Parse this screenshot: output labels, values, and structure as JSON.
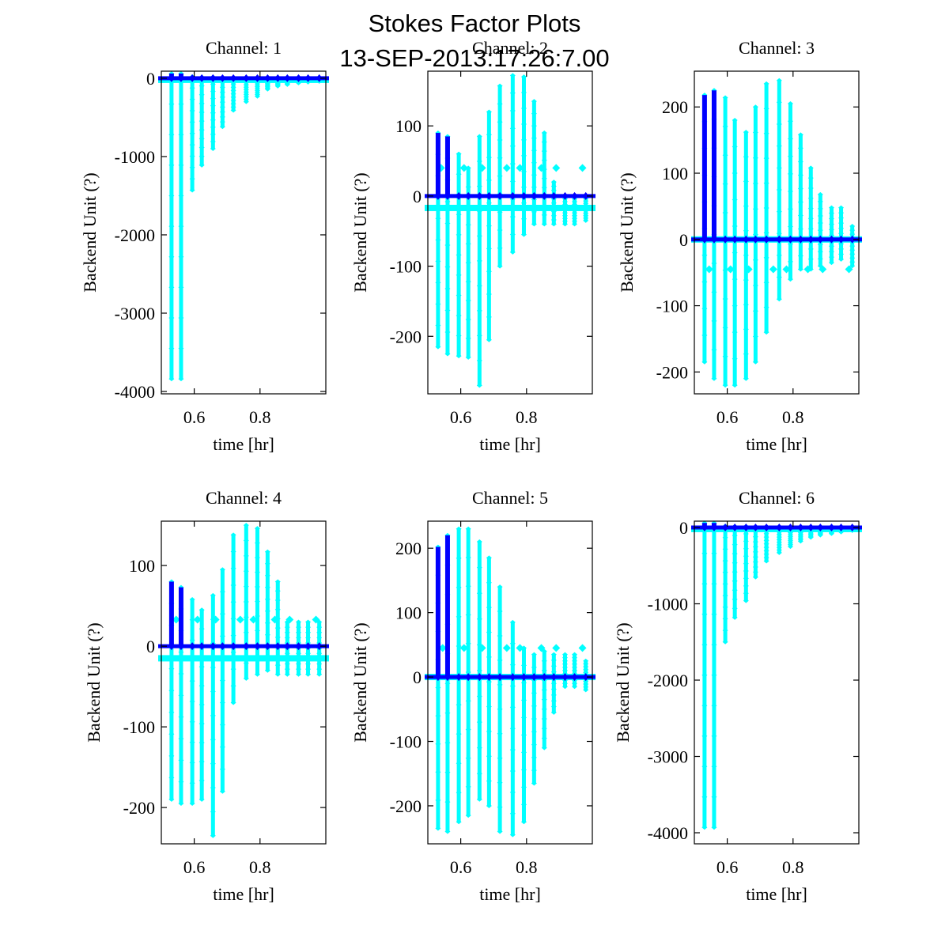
{
  "figure": {
    "title_line1": "Stokes Factor Plots",
    "title_line2": "13-SEP-2013:17:26:7.00"
  },
  "colors": {
    "scatter_primary": "#00FFFF",
    "scatter_mean": "#0000FF",
    "axes": "#000000"
  },
  "chart_data": [
    {
      "type": "scatter",
      "title": "Channel: 1",
      "xlabel": "time [hr]",
      "ylabel": "Backend Unit (?)",
      "xlim": [
        0.5,
        1.0
      ],
      "ylim": [
        -4030,
        90
      ],
      "xticks": [
        0.6,
        0.8
      ],
      "xtick_labels": [
        "0.6",
        "0.8"
      ],
      "yticks": [
        0,
        -1000,
        -2000,
        -3000,
        -4000
      ],
      "ytick_labels": [
        "0",
        "-1000",
        "-2000",
        "-3000",
        "-4000"
      ],
      "grid": false,
      "series": [
        {
          "name": "samples",
          "color": "#00FFFF",
          "stripes_t": [
            0.531,
            0.56,
            0.594,
            0.623,
            0.657,
            0.686,
            0.719,
            0.758,
            0.792,
            0.823,
            0.854,
            0.883,
            0.917,
            0.946,
            0.98
          ],
          "stripes_max": [
            60,
            60,
            20,
            15,
            15,
            10,
            10,
            10,
            10,
            10,
            10,
            10,
            10,
            10,
            10
          ],
          "stripes_min": [
            -3840,
            -3840,
            -1430,
            -1110,
            -900,
            -620,
            -410,
            -300,
            -230,
            -140,
            -100,
            -80,
            -60,
            -50,
            -40
          ],
          "band_level": -20
        },
        {
          "name": "mean",
          "color": "#0000FF",
          "level": 0
        }
      ]
    },
    {
      "type": "scatter",
      "title": "Channel: 2",
      "xlabel": "time [hr]",
      "ylabel": "Backend Unit (?)",
      "xlim": [
        0.5,
        1.0
      ],
      "ylim": [
        -282,
        178
      ],
      "xticks": [
        0.6,
        0.8
      ],
      "xtick_labels": [
        "0.6",
        "0.8"
      ],
      "yticks": [
        100,
        0,
        -100,
        -200
      ],
      "ytick_labels": [
        "100",
        "0",
        "-100",
        "-200"
      ],
      "grid": false,
      "series": [
        {
          "name": "samples",
          "color": "#00FFFF",
          "stripes_t": [
            0.531,
            0.56,
            0.594,
            0.623,
            0.657,
            0.686,
            0.719,
            0.758,
            0.792,
            0.823,
            0.854,
            0.883,
            0.917,
            0.946,
            0.98
          ],
          "stripes_max": [
            90,
            85,
            60,
            40,
            85,
            120,
            157,
            172,
            170,
            135,
            90,
            20,
            0,
            0,
            0
          ],
          "stripes_min": [
            -215,
            -225,
            -228,
            -230,
            -270,
            -205,
            -100,
            -80,
            -55,
            -40,
            -40,
            -40,
            -40,
            -40,
            -35
          ],
          "band_level": -17,
          "outliers": [
            [
              0.54,
              40
            ],
            [
              0.61,
              40
            ],
            [
              0.665,
              40
            ],
            [
              0.74,
              40
            ],
            [
              0.78,
              40
            ],
            [
              0.845,
              40
            ],
            [
              0.89,
              40
            ],
            [
              0.97,
              40
            ]
          ]
        },
        {
          "name": "mean",
          "color": "#0000FF",
          "level": 0
        }
      ]
    },
    {
      "type": "scatter",
      "title": "Channel: 3",
      "xlabel": "time [hr]",
      "ylabel": "Backend Unit (?)",
      "xlim": [
        0.5,
        1.0
      ],
      "ylim": [
        -233,
        254
      ],
      "xticks": [
        0.6,
        0.8
      ],
      "xtick_labels": [
        "0.6",
        "0.8"
      ],
      "yticks": [
        200,
        100,
        0,
        -100,
        -200
      ],
      "ytick_labels": [
        "200",
        "100",
        "0",
        "-100",
        "-200"
      ],
      "grid": false,
      "series": [
        {
          "name": "samples",
          "color": "#00FFFF",
          "stripes_t": [
            0.531,
            0.56,
            0.594,
            0.623,
            0.657,
            0.686,
            0.719,
            0.758,
            0.792,
            0.823,
            0.854,
            0.883,
            0.917,
            0.946,
            0.98
          ],
          "stripes_max": [
            218,
            225,
            214,
            180,
            162,
            200,
            235,
            240,
            205,
            158,
            108,
            68,
            48,
            48,
            20
          ],
          "stripes_min": [
            -185,
            -210,
            -220,
            -220,
            -210,
            -185,
            -140,
            -90,
            -60,
            -45,
            -45,
            -40,
            -35,
            -30,
            -40
          ],
          "band_level": 0,
          "outliers": [
            [
              0.545,
              -45
            ],
            [
              0.61,
              -45
            ],
            [
              0.665,
              -45
            ],
            [
              0.74,
              -45
            ],
            [
              0.78,
              -45
            ],
            [
              0.845,
              -45
            ],
            [
              0.89,
              -45
            ],
            [
              0.97,
              -45
            ]
          ]
        },
        {
          "name": "mean",
          "color": "#0000FF",
          "level": 0
        }
      ]
    },
    {
      "type": "scatter",
      "title": "Channel: 4",
      "xlabel": "time [hr]",
      "ylabel": "Backend Unit (?)",
      "xlim": [
        0.5,
        1.0
      ],
      "ylim": [
        -245,
        155
      ],
      "xticks": [
        0.6,
        0.8
      ],
      "xtick_labels": [
        "0.6",
        "0.8"
      ],
      "yticks": [
        100,
        0,
        -100,
        -200
      ],
      "ytick_labels": [
        "100",
        "0",
        "-100",
        "-200"
      ],
      "grid": false,
      "series": [
        {
          "name": "samples",
          "color": "#00FFFF",
          "stripes_t": [
            0.531,
            0.56,
            0.594,
            0.623,
            0.657,
            0.686,
            0.719,
            0.758,
            0.792,
            0.823,
            0.854,
            0.883,
            0.917,
            0.946,
            0.98
          ],
          "stripes_max": [
            80,
            73,
            58,
            45,
            63,
            95,
            138,
            150,
            146,
            117,
            80,
            30,
            30,
            30,
            30
          ],
          "stripes_min": [
            -190,
            -195,
            -195,
            -190,
            -235,
            -180,
            -70,
            -40,
            -35,
            -30,
            -35,
            -35,
            -35,
            -35,
            -35
          ],
          "band_level": -15,
          "outliers": [
            [
              0.545,
              33
            ],
            [
              0.61,
              33
            ],
            [
              0.665,
              33
            ],
            [
              0.74,
              33
            ],
            [
              0.78,
              33
            ],
            [
              0.845,
              33
            ],
            [
              0.89,
              33
            ],
            [
              0.97,
              33
            ]
          ]
        },
        {
          "name": "mean",
          "color": "#0000FF",
          "level": 0
        }
      ]
    },
    {
      "type": "scatter",
      "title": "Channel: 5",
      "xlabel": "time [hr]",
      "ylabel": "Backend Unit (?)",
      "xlim": [
        0.5,
        1.0
      ],
      "ylim": [
        -259,
        242
      ],
      "xticks": [
        0.6,
        0.8
      ],
      "xtick_labels": [
        "0.6",
        "0.8"
      ],
      "yticks": [
        200,
        100,
        0,
        -100,
        -200
      ],
      "ytick_labels": [
        "200",
        "100",
        "0",
        "-100",
        "-200"
      ],
      "grid": false,
      "series": [
        {
          "name": "samples",
          "color": "#00FFFF",
          "stripes_t": [
            0.531,
            0.56,
            0.594,
            0.623,
            0.657,
            0.686,
            0.719,
            0.758,
            0.792,
            0.823,
            0.854,
            0.883,
            0.917,
            0.946,
            0.98
          ],
          "stripes_max": [
            202,
            220,
            230,
            230,
            210,
            185,
            140,
            85,
            45,
            35,
            40,
            35,
            35,
            35,
            25
          ],
          "stripes_min": [
            -235,
            -240,
            -225,
            -215,
            -190,
            -200,
            -240,
            -245,
            -225,
            -165,
            -110,
            -55,
            -15,
            -15,
            -20
          ],
          "band_level": 0,
          "outliers": [
            [
              0.545,
              45
            ],
            [
              0.61,
              45
            ],
            [
              0.665,
              45
            ],
            [
              0.74,
              45
            ],
            [
              0.78,
              45
            ],
            [
              0.845,
              45
            ],
            [
              0.89,
              45
            ],
            [
              0.97,
              45
            ]
          ]
        },
        {
          "name": "mean",
          "color": "#0000FF",
          "level": 0
        }
      ]
    },
    {
      "type": "scatter",
      "title": "Channel: 6",
      "xlabel": "time [hr]",
      "ylabel": "Backend Unit (?)",
      "xlim": [
        0.5,
        1.0
      ],
      "ylim": [
        -4145,
        83
      ],
      "xticks": [
        0.6,
        0.8
      ],
      "xtick_labels": [
        "0.6",
        "0.8"
      ],
      "yticks": [
        0,
        -1000,
        -2000,
        -3000,
        -4000
      ],
      "ytick_labels": [
        "0",
        "-1000",
        "-2000",
        "-3000",
        "-4000"
      ],
      "grid": false,
      "series": [
        {
          "name": "samples",
          "color": "#00FFFF",
          "stripes_t": [
            0.531,
            0.56,
            0.594,
            0.623,
            0.657,
            0.686,
            0.719,
            0.758,
            0.792,
            0.823,
            0.854,
            0.883,
            0.917,
            0.946,
            0.98
          ],
          "stripes_max": [
            60,
            60,
            20,
            15,
            15,
            10,
            10,
            10,
            10,
            10,
            10,
            10,
            10,
            10,
            10
          ],
          "stripes_min": [
            -3930,
            -3930,
            -1500,
            -1180,
            -960,
            -650,
            -440,
            -330,
            -250,
            -180,
            -130,
            -100,
            -80,
            -60,
            -40
          ],
          "band_level": -20
        },
        {
          "name": "mean",
          "color": "#0000FF",
          "level": 0
        }
      ]
    }
  ]
}
